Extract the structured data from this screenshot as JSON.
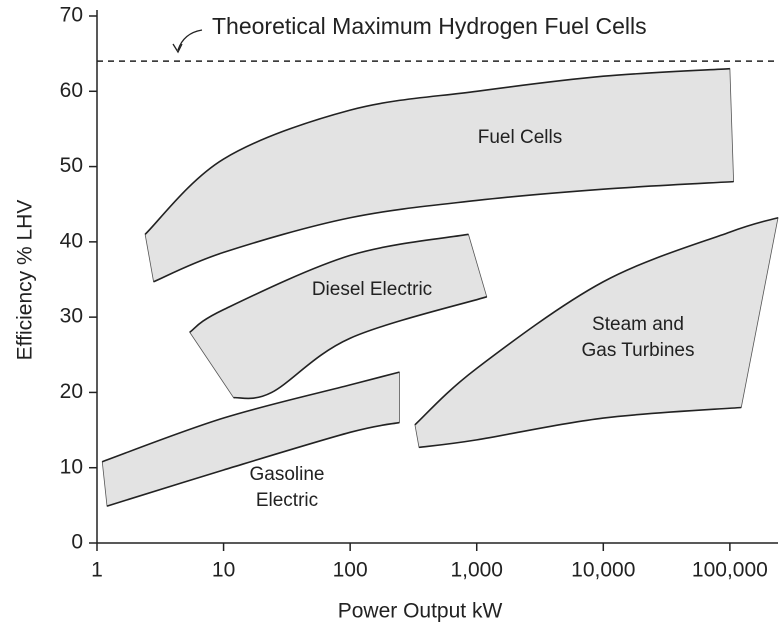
{
  "chart_data": {
    "type": "band",
    "x_label": "Power Output kW",
    "y_label": "Efficiency % LHV",
    "xscale": "log",
    "xlim": [
      1,
      240000
    ],
    "ylim": [
      0,
      70
    ],
    "xticks": [
      1,
      10,
      100,
      {
        "value": 1000,
        "label": "1,000"
      },
      {
        "value": 10000,
        "label": "10,000"
      },
      {
        "value": 100000,
        "label": "100,000"
      }
    ],
    "yticks": [
      0,
      10,
      20,
      30,
      40,
      50,
      60,
      70
    ],
    "color": "#e3e3e3",
    "reference_line": {
      "label": "Theoretical Maximum Hydrogen Fuel Cells",
      "value": 64
    },
    "regions": [
      {
        "label": [
          "Fuel Cells"
        ],
        "upper": {
          "x": [
            2.4,
            10,
            100,
            1000,
            10000,
            100000
          ],
          "y": [
            41,
            51,
            57.5,
            60,
            62,
            63
          ]
        },
        "lower": {
          "x": [
            2.8,
            10,
            100,
            1000,
            10000,
            107000
          ],
          "y": [
            34.7,
            38.6,
            43.2,
            45.5,
            47,
            48
          ]
        }
      },
      {
        "label": [
          "Diesel Electric"
        ],
        "upper": {
          "x": [
            5.4,
            10,
            100,
            860
          ],
          "y": [
            28,
            31,
            38.2,
            41
          ]
        },
        "lower": {
          "x": [
            12,
            24,
            100,
            1200
          ],
          "y": [
            19.3,
            20,
            27.2,
            32.7
          ]
        }
      },
      {
        "label": [
          "Steam and",
          "Gas Turbines"
        ],
        "upper": {
          "x": [
            325,
            1000,
            10000,
            100000,
            240000
          ],
          "y": [
            15.7,
            23.2,
            34.7,
            41.3,
            43.2
          ]
        },
        "lower": {
          "x": [
            350,
            1000,
            10000,
            123000
          ],
          "y": [
            12.7,
            13.7,
            16.6,
            18
          ]
        }
      },
      {
        "label": [
          "Gasoline",
          "Electric"
        ],
        "upper": {
          "x": [
            1.1,
            10,
            100,
            245
          ],
          "y": [
            10.8,
            16.6,
            21,
            22.7
          ]
        },
        "lower": {
          "x": [
            1.2,
            10,
            100,
            245
          ],
          "y": [
            4.9,
            9.7,
            14.7,
            16
          ]
        }
      }
    ]
  }
}
